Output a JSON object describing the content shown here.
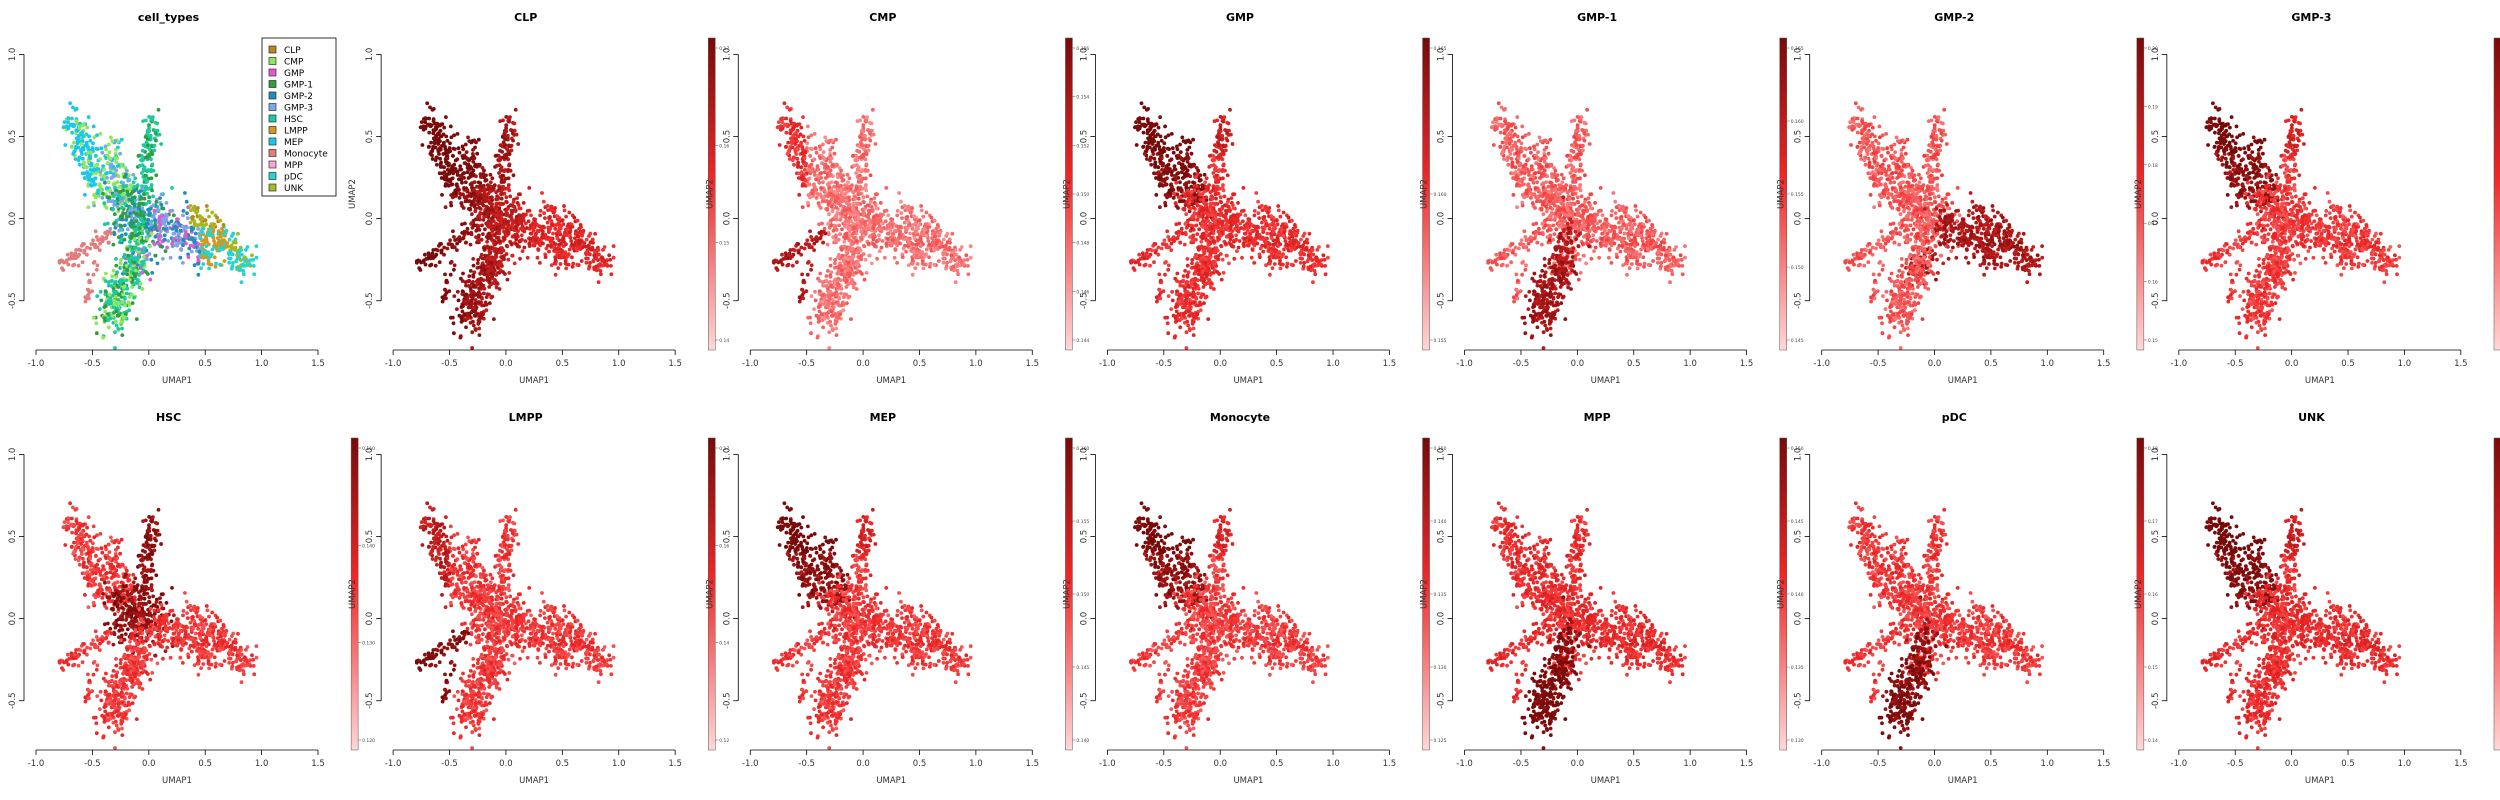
{
  "figure": {
    "x_label": "UMAP1",
    "y_label": "UMAP2",
    "x_ticks": [
      -1.0,
      -0.5,
      0.0,
      0.5,
      1.0,
      1.5
    ],
    "y_ticks": [
      -0.5,
      0.0,
      0.5,
      1.0
    ],
    "xlim": [
      -1.0,
      1.5
    ],
    "ylim": [
      -0.8,
      1.1
    ]
  },
  "legend": {
    "entries": [
      {
        "label": "CLP",
        "color": "#B8861F"
      },
      {
        "label": "CMP",
        "color": "#8FE85A"
      },
      {
        "label": "GMP",
        "color": "#E05AD0"
      },
      {
        "label": "GMP-1",
        "color": "#2E9E3E"
      },
      {
        "label": "GMP-2",
        "color": "#1E8FB8"
      },
      {
        "label": "GMP-3",
        "color": "#7FA6E8"
      },
      {
        "label": "HSC",
        "color": "#1FC9A0"
      },
      {
        "label": "LMPP",
        "color": "#D2991E"
      },
      {
        "label": "MEP",
        "color": "#19C8E8"
      },
      {
        "label": "Monocyte",
        "color": "#E37C7C"
      },
      {
        "label": "MPP",
        "color": "#F2A6D4"
      },
      {
        "label": "pDC",
        "color": "#22D4D4"
      },
      {
        "label": "UNK",
        "color": "#A7B81E"
      }
    ]
  },
  "panels": [
    {
      "title": "cell_types",
      "kind": "categorical"
    },
    {
      "title": "CLP",
      "kind": "continuous",
      "ticks": [
        "0.14",
        "0.15",
        "0.16",
        "0.17"
      ],
      "hot_region": "left",
      "base_level": 0.6
    },
    {
      "title": "CMP",
      "kind": "continuous",
      "ticks": [
        "0.144",
        "0.146",
        "0.148",
        "0.150",
        "0.152",
        "0.154",
        "0.156"
      ],
      "hot_region": "left-tip",
      "base_level": 0.32
    },
    {
      "title": "GMP",
      "kind": "continuous",
      "ticks": [
        "0.155",
        "0.160",
        "0.165"
      ],
      "hot_region": "top-left",
      "base_level": 0.55
    },
    {
      "title": "GMP-1",
      "kind": "continuous",
      "ticks": [
        "0.145",
        "0.150",
        "0.155",
        "0.160",
        "0.165"
      ],
      "hot_region": "bottom",
      "base_level": 0.38
    },
    {
      "title": "GMP-2",
      "kind": "continuous",
      "ticks": [
        "0.15",
        "0.16",
        "0.17",
        "0.18",
        "0.19",
        "0.20"
      ],
      "hot_region": "right",
      "base_level": 0.4
    },
    {
      "title": "GMP-3",
      "kind": "continuous",
      "ticks": [
        "0.08",
        "0.10",
        "0.12",
        "0.14"
      ],
      "hot_region": "top-left",
      "base_level": 0.5
    },
    {
      "title": "HSC",
      "kind": "continuous",
      "ticks": [
        "0.120",
        "0.130",
        "0.140",
        "0.150"
      ],
      "hot_region": "center",
      "base_level": 0.5
    },
    {
      "title": "LMPP",
      "kind": "continuous",
      "ticks": [
        "0.12",
        "0.14",
        "0.16",
        "0.17"
      ],
      "hot_region": "left-tip",
      "base_level": 0.5
    },
    {
      "title": "MEP",
      "kind": "continuous",
      "ticks": [
        "0.140",
        "0.145",
        "0.150",
        "0.155",
        "0.160"
      ],
      "hot_region": "top-left",
      "base_level": 0.5
    },
    {
      "title": "Monocyte",
      "kind": "continuous",
      "ticks": [
        "0.125",
        "0.130",
        "0.135",
        "0.140",
        "0.150"
      ],
      "hot_region": "top-left",
      "base_level": 0.48
    },
    {
      "title": "MPP",
      "kind": "continuous",
      "ticks": [
        "0.130",
        "0.135",
        "0.140",
        "0.145",
        "0.150"
      ],
      "hot_region": "bottom",
      "base_level": 0.55
    },
    {
      "title": "pDC",
      "kind": "continuous",
      "ticks": [
        "0.14",
        "0.15",
        "0.16",
        "0.17",
        "0.18"
      ],
      "hot_region": "bottom",
      "base_level": 0.5
    },
    {
      "title": "UNK",
      "kind": "continuous",
      "ticks": [
        "0.140",
        "0.160",
        "0.180",
        "0.200"
      ],
      "hot_region": "top-left",
      "base_level": 0.55
    }
  ],
  "chart_data": {
    "type": "scatter",
    "title": "",
    "xlabel": "UMAP1",
    "ylabel": "UMAP2",
    "xlim": [
      -1.0,
      1.5
    ],
    "ylim": [
      -0.8,
      1.1
    ],
    "grid": false,
    "legend_position": "top-right",
    "series": [
      {
        "name": "CLP",
        "color": "#B8861F"
      },
      {
        "name": "CMP",
        "color": "#8FE85A"
      },
      {
        "name": "GMP",
        "color": "#E05AD0"
      },
      {
        "name": "GMP-1",
        "color": "#2E9E3E"
      },
      {
        "name": "GMP-2",
        "color": "#1E8FB8"
      },
      {
        "name": "GMP-3",
        "color": "#7FA6E8"
      },
      {
        "name": "HSC",
        "color": "#1FC9A0"
      },
      {
        "name": "LMPP",
        "color": "#D2991E"
      },
      {
        "name": "MEP",
        "color": "#19C8E8"
      },
      {
        "name": "Monocyte",
        "color": "#E37C7C"
      },
      {
        "name": "MPP",
        "color": "#F2A6D4"
      },
      {
        "name": "pDC",
        "color": "#22D4D4"
      },
      {
        "name": "UNK",
        "color": "#A7B81E"
      }
    ]
  }
}
